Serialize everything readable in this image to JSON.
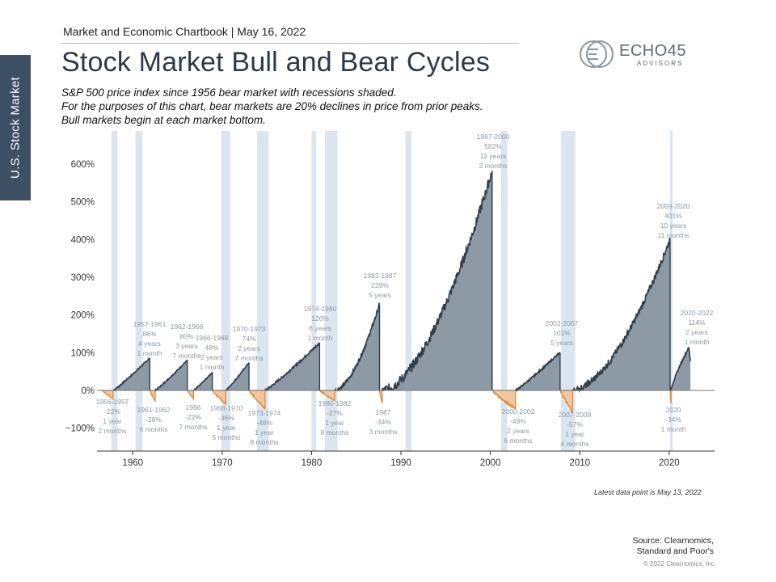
{
  "side_tab": "U.S. Stock Market",
  "header": "Market and Economic Chartbook | May 16, 2022",
  "title": "Stock Market Bull and Bear Cycles",
  "subtitle": [
    "S&P 500 price index since 1956 bear market with recessions shaded.",
    "For the purposes of this chart, bear markets are 20% declines in price from prior peaks.",
    "Bull markets begin at each market bottom."
  ],
  "logo": {
    "word": "ECHO45",
    "sub": "ADVISORS"
  },
  "footer_note": "Latest data point is May 13, 2022",
  "source_lines": [
    "Source: Clearnomics,",
    "Standard and Poor's"
  ],
  "copyright": "© 2022 Clearnomics, Inc.",
  "colors": {
    "bull_fill": "#8c9aa5",
    "bull_line": "#2f3f4c",
    "bear": "#e0893a",
    "recession": "#dbe5ef",
    "label": "#8a98a6"
  },
  "chart_data": {
    "type": "area",
    "title": "Stock Market Bull and Bear Cycles",
    "xlim": [
      1956,
      2023
    ],
    "ylim": [
      -150,
      680
    ],
    "x_ticks": [
      1960,
      1970,
      1980,
      1990,
      2000,
      2010,
      2020
    ],
    "y_ticks": [
      600,
      500,
      400,
      300,
      200,
      100,
      0,
      -100
    ],
    "y_tick_labels": [
      "600%",
      "500%",
      "400%",
      "300%",
      "200%",
      "100%",
      "0%",
      "−100%"
    ],
    "recessions": [
      [
        1957.6,
        1958.3
      ],
      [
        1960.3,
        1961.1
      ],
      [
        1969.9,
        1970.9
      ],
      [
        1973.9,
        1975.2
      ],
      [
        1980.0,
        1980.5
      ],
      [
        1981.5,
        1982.9
      ],
      [
        1990.5,
        1991.2
      ],
      [
        2001.2,
        2001.9
      ],
      [
        2007.9,
        2009.5
      ],
      [
        2020.1,
        2020.4
      ]
    ],
    "bull_markets": [
      {
        "start": 1957.8,
        "end": 1961.9,
        "gain": 86,
        "labels": [
          "1957-1961",
          "86%",
          "4 years",
          "1 month"
        ]
      },
      {
        "start": 1962.5,
        "end": 1966.1,
        "gain": 80,
        "labels": [
          "1962-1966",
          "80%",
          "3 years",
          "7 months"
        ]
      },
      {
        "start": 1966.8,
        "end": 1968.9,
        "gain": 48,
        "labels": [
          "1966-1968",
          "48%",
          "2 years",
          "1 month"
        ]
      },
      {
        "start": 1970.4,
        "end": 1973.0,
        "gain": 74,
        "labels": [
          "1970-1973",
          "74%",
          "2 years",
          "7 months"
        ]
      },
      {
        "start": 1974.8,
        "end": 1980.9,
        "gain": 126,
        "labels": [
          "1974-1980",
          "126%",
          "6 years",
          "1 month"
        ]
      },
      {
        "start": 1982.6,
        "end": 1987.6,
        "gain": 229,
        "labels": [
          "1982-1987",
          "229%",
          "5 years"
        ]
      },
      {
        "start": 1987.9,
        "end": 2000.2,
        "gain": 582,
        "labels": [
          "1987-2000",
          "582%",
          "12 years",
          "3 months"
        ]
      },
      {
        "start": 2002.8,
        "end": 2007.8,
        "gain": 101,
        "labels": [
          "2002-2007",
          "101%",
          "5 years"
        ]
      },
      {
        "start": 2009.2,
        "end": 2020.1,
        "gain": 401,
        "labels": [
          "2009-2020",
          "401%",
          "10 years",
          "11 months"
        ]
      },
      {
        "start": 2020.2,
        "end": 2022.37,
        "gain": 114,
        "end_value": 78,
        "labels": [
          "2020-2022",
          "114%",
          "2 years",
          "1 month"
        ]
      }
    ],
    "bear_markets": [
      {
        "start": 1956.6,
        "end": 1957.8,
        "decline": -22,
        "labels": [
          "1956-1957",
          "-22%",
          "1 year",
          "2 months"
        ]
      },
      {
        "start": 1961.9,
        "end": 1962.5,
        "decline": -28,
        "labels": [
          "1961-1962",
          "-28%",
          "6 months"
        ]
      },
      {
        "start": 1966.1,
        "end": 1966.8,
        "decline": -22,
        "labels": [
          "1966",
          "-22%",
          "7 months"
        ]
      },
      {
        "start": 1968.9,
        "end": 1970.4,
        "decline": -36,
        "labels": [
          "1968-1970",
          "-36%",
          "1 year",
          "5 months"
        ]
      },
      {
        "start": 1973.0,
        "end": 1974.8,
        "decline": -48,
        "labels": [
          "1973-1974",
          "-48%",
          "1 year",
          "8 months"
        ]
      },
      {
        "start": 1980.9,
        "end": 1982.6,
        "decline": -27,
        "labels": [
          "1980-1982",
          "-27%",
          "1 year",
          "8 months"
        ]
      },
      {
        "start": 1987.6,
        "end": 1987.9,
        "decline": -34,
        "labels": [
          "1987",
          "-34%",
          "3 months"
        ]
      },
      {
        "start": 2000.2,
        "end": 2002.8,
        "decline": -49,
        "labels": [
          "2000-2002",
          "-49%",
          "2 years",
          "6 months"
        ]
      },
      {
        "start": 2007.8,
        "end": 2009.2,
        "decline": -57,
        "labels": [
          "2007-2009",
          "-57%",
          "1 year",
          "4 months"
        ]
      },
      {
        "start": 2020.1,
        "end": 2020.2,
        "decline": -34,
        "labels": [
          "2020",
          "-34%",
          "1 month"
        ]
      }
    ]
  }
}
